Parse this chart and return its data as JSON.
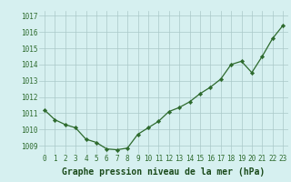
{
  "x": [
    0,
    1,
    2,
    3,
    4,
    5,
    6,
    7,
    8,
    9,
    10,
    11,
    12,
    13,
    14,
    15,
    16,
    17,
    18,
    19,
    20,
    21,
    22,
    23
  ],
  "y": [
    1011.2,
    1010.6,
    1010.3,
    1010.1,
    1009.4,
    1009.2,
    1008.8,
    1008.75,
    1008.85,
    1009.7,
    1010.1,
    1010.5,
    1011.1,
    1011.35,
    1011.7,
    1012.2,
    1012.6,
    1013.1,
    1014.0,
    1014.2,
    1013.5,
    1014.5,
    1015.6,
    1016.4
  ],
  "line_color": "#2d6a2d",
  "marker": "D",
  "marker_size": 2.2,
  "line_width": 0.9,
  "bg_color": "#d6f0f0",
  "grid_color": "#aac8c8",
  "xlabel": "Graphe pression niveau de la mer (hPa)",
  "xlabel_color": "#1a4a1a",
  "xlabel_fontsize": 7.0,
  "tick_label_color": "#2d6a2d",
  "tick_fontsize": 5.5,
  "ytick_labels": [
    "1009",
    "1010",
    "1011",
    "1012",
    "1013",
    "1014",
    "1015",
    "1016",
    "1017"
  ],
  "ytick_values": [
    1009,
    1010,
    1011,
    1012,
    1013,
    1014,
    1015,
    1016,
    1017
  ],
  "ylim": [
    1008.5,
    1017.3
  ],
  "xlim": [
    -0.5,
    23.5
  ],
  "xtick_labels": [
    "0",
    "1",
    "2",
    "3",
    "4",
    "5",
    "6",
    "7",
    "8",
    "9",
    "10",
    "11",
    "12",
    "13",
    "14",
    "15",
    "16",
    "17",
    "18",
    "19",
    "20",
    "21",
    "22",
    "23"
  ]
}
